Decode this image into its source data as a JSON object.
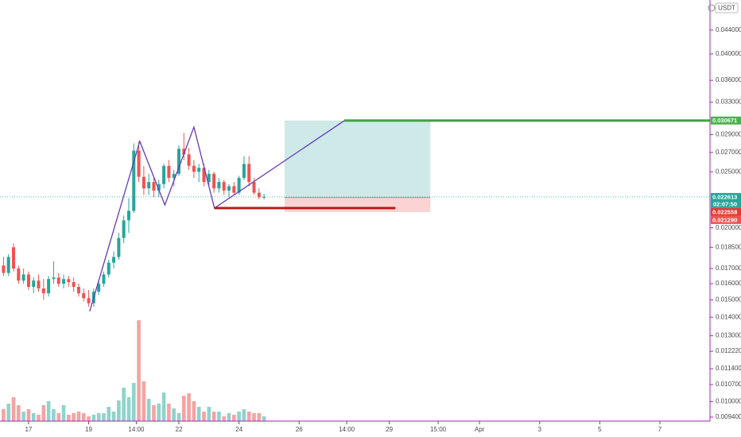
{
  "chart_data": {
    "type": "candlestick",
    "currency": "USDT",
    "log_scale": true,
    "up_color": "#26a69a",
    "down_color": "#ef5350",
    "volume_up_color": "#8fd3cb",
    "volume_down_color": "#f5a3a1",
    "open": [
      0.0172,
      0.0167,
      0.0185,
      0.017,
      0.0162,
      0.0166,
      0.0158,
      0.0162,
      0.0157,
      0.0154,
      0.0163,
      0.0164,
      0.016,
      0.0163,
      0.0161,
      0.0158,
      0.0154,
      0.0151,
      0.0148,
      0.0155,
      0.016,
      0.0166,
      0.0174,
      0.0178,
      0.0192,
      0.0206,
      0.0214,
      0.0272,
      0.0245,
      0.0234,
      0.024,
      0.0232,
      0.0238,
      0.0256,
      0.0244,
      0.0248,
      0.0274,
      0.0268,
      0.0256,
      0.025,
      0.0254,
      0.024,
      0.0248,
      0.0234,
      0.024,
      0.0232,
      0.0236,
      0.023,
      0.0244,
      0.0258,
      0.024,
      0.023,
      0.0226
    ],
    "high": [
      0.0178,
      0.018,
      0.0188,
      0.0172,
      0.017,
      0.0168,
      0.0164,
      0.0166,
      0.0163,
      0.0165,
      0.0175,
      0.0167,
      0.0166,
      0.0165,
      0.0164,
      0.016,
      0.0157,
      0.0156,
      0.0157,
      0.0162,
      0.0168,
      0.0176,
      0.0182,
      0.0196,
      0.021,
      0.0225,
      0.028,
      0.0282,
      0.0256,
      0.0248,
      0.0244,
      0.0242,
      0.0258,
      0.0262,
      0.0252,
      0.0278,
      0.0292,
      0.0275,
      0.0262,
      0.0258,
      0.0258,
      0.0252,
      0.025,
      0.0244,
      0.0242,
      0.0238,
      0.024,
      0.0246,
      0.0266,
      0.0266,
      0.0244,
      0.0234,
      0.0229
    ],
    "low": [
      0.0165,
      0.0165,
      0.0168,
      0.016,
      0.016,
      0.0156,
      0.0154,
      0.0155,
      0.015,
      0.0152,
      0.016,
      0.0158,
      0.0157,
      0.0158,
      0.0155,
      0.0152,
      0.0149,
      0.0146,
      0.0146,
      0.0153,
      0.0158,
      0.0164,
      0.017,
      0.0176,
      0.0188,
      0.0196,
      0.0212,
      0.024,
      0.0228,
      0.0228,
      0.0226,
      0.0226,
      0.0234,
      0.024,
      0.0236,
      0.0246,
      0.0262,
      0.0252,
      0.0244,
      0.024,
      0.0236,
      0.0236,
      0.023,
      0.023,
      0.0228,
      0.0226,
      0.0228,
      0.0228,
      0.0242,
      0.0236,
      0.0228,
      0.0224,
      0.0224
    ],
    "close": [
      0.0167,
      0.0178,
      0.017,
      0.0162,
      0.0166,
      0.0158,
      0.0162,
      0.0157,
      0.0154,
      0.0163,
      0.0164,
      0.016,
      0.0163,
      0.0161,
      0.0158,
      0.0154,
      0.0151,
      0.0148,
      0.0155,
      0.016,
      0.0166,
      0.0174,
      0.0178,
      0.0192,
      0.0206,
      0.0214,
      0.0272,
      0.0245,
      0.0234,
      0.024,
      0.0232,
      0.0238,
      0.0256,
      0.0244,
      0.0248,
      0.0274,
      0.0268,
      0.0256,
      0.025,
      0.0254,
      0.024,
      0.0248,
      0.0234,
      0.024,
      0.0232,
      0.0236,
      0.023,
      0.0244,
      0.0258,
      0.024,
      0.023,
      0.0226,
      0.022613
    ],
    "volume": [
      15,
      22,
      30,
      20,
      12,
      15,
      10,
      8,
      20,
      25,
      15,
      10,
      20,
      8,
      10,
      12,
      10,
      6,
      8,
      10,
      10,
      18,
      12,
      26,
      42,
      30,
      48,
      127,
      50,
      28,
      20,
      22,
      36,
      22,
      16,
      10,
      32,
      35,
      25,
      18,
      12,
      18,
      12,
      12,
      6,
      10,
      8,
      12,
      15,
      12,
      10,
      10,
      6
    ],
    "countdown": "02:07:50",
    "xlim": [
      -0.7,
      141
    ],
    "xticks": [
      {
        "value": 5,
        "label": "17"
      },
      {
        "value": 17,
        "label": "19"
      },
      {
        "value": 26.5,
        "label": "14:00"
      },
      {
        "value": 35,
        "label": "22"
      },
      {
        "value": 47,
        "label": "24"
      },
      {
        "value": 59,
        "label": "26"
      },
      {
        "value": 68.5,
        "label": "14:00"
      },
      {
        "value": 77,
        "label": "29"
      },
      {
        "value": 86.75,
        "label": "15:00"
      },
      {
        "value": 95,
        "label": "Apr"
      },
      {
        "value": 107,
        "label": "3"
      },
      {
        "value": 119,
        "label": "5"
      },
      {
        "value": 131,
        "label": "7"
      }
    ],
    "ylim": [
      0.00925,
      0.0496
    ],
    "yticks": [
      {
        "value": 0.044,
        "label": "0.044000"
      },
      {
        "value": 0.04,
        "label": "0.040000"
      },
      {
        "value": 0.036,
        "label": "0.036000"
      },
      {
        "value": 0.033,
        "label": "0.033000"
      },
      {
        "value": 0.029,
        "label": "0.029000"
      },
      {
        "value": 0.027,
        "label": "0.027000"
      },
      {
        "value": 0.025,
        "label": "0.025000"
      },
      {
        "value": 0.02,
        "label": "0.020000"
      },
      {
        "value": 0.0185,
        "label": "0.018500"
      },
      {
        "value": 0.017,
        "label": "0.017000"
      },
      {
        "value": 0.016,
        "label": "0.016000"
      },
      {
        "value": 0.015,
        "label": "0.015000"
      },
      {
        "value": 0.014,
        "label": "0.014000"
      },
      {
        "value": 0.013,
        "label": "0.013000"
      },
      {
        "value": 0.01222,
        "label": "0.012220"
      },
      {
        "value": 0.0114,
        "label": "0.011400"
      },
      {
        "value": 0.0107,
        "label": "0.010700"
      },
      {
        "value": 0.01,
        "label": "0.010000"
      },
      {
        "value": 0.0094,
        "label": "0.009400"
      }
    ],
    "zigzag": {
      "color": "#673ab7",
      "x": [
        17.2,
        27.2,
        32.2,
        38,
        42.1,
        68
      ],
      "y": [
        0.01433,
        0.02823,
        0.0219,
        0.02988,
        0.02163,
        0.03065
      ]
    },
    "position": {
      "x": [
        56.1,
        85.2
      ],
      "entry": 0.022558,
      "target": 0.030671,
      "stop": 0.02129,
      "stop_label": "0.021290",
      "profit_color": "#cdeae8",
      "loss_color": "#fbd3d3",
      "target_color": "#4caf50",
      "stop_color": "#ef5350",
      "entry_color": "#e53935"
    },
    "target_line": {
      "x": 68,
      "value": 0.030671,
      "color": "#43a047"
    },
    "stop_line": {
      "x": [
        42.1,
        78.2
      ],
      "value": 0.02163,
      "color": "#b71c1c"
    }
  }
}
